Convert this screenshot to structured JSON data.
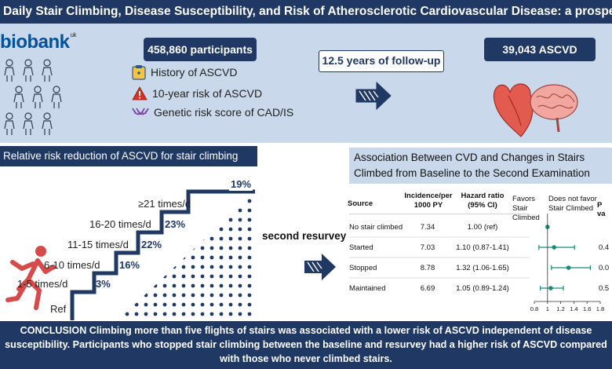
{
  "title": "Daily Stair Climbing, Disease Susceptibility, and Risk of Atherosclerotic Cardiovascular Disease: a prospective cohort study",
  "top": {
    "logo": "biobank",
    "logo_sup": "uk",
    "participants": "458,860 participants",
    "features": [
      "History of ASCVD",
      "10-year risk of ASCVD",
      "Genetic risk score of CAD/IS"
    ],
    "followup": "12.5 years of follow-up",
    "outcome": "39,043 ASCVD"
  },
  "left_panel": {
    "title": "Relative risk reduction of ASCVD for stair climbing",
    "steps": [
      {
        "label": "Ref",
        "pct": ""
      },
      {
        "label": "1-5 times/d",
        "pct": "3%"
      },
      {
        "label": "6-10 times/d",
        "pct": "16%"
      },
      {
        "label": "11-15 times/d",
        "pct": "22%"
      },
      {
        "label": "16-20 times/d",
        "pct": "23%"
      },
      {
        "label": "≥21 times/d",
        "pct": "19%"
      }
    ]
  },
  "middle": {
    "label": "second resurvey"
  },
  "right_panel": {
    "title": "Association Between CVD and Changes in Stairs Climbed from Baseline to the Second Examination",
    "table": {
      "headers": [
        "Source",
        "Incidence/per 1000 PY",
        "Hazard ratio (95% CI)",
        "P va"
      ],
      "favors": "Favors Stair Climbed",
      "not_favor": "Does not favor Stair Climbed",
      "rows": [
        {
          "source": "No stair climbed",
          "incidence": "7.34",
          "hr": "1.00 (ref)",
          "p": "",
          "est": 1.0,
          "lo": 1.0,
          "hi": 1.0
        },
        {
          "source": "Started",
          "incidence": "7.03",
          "hr": "1.10 (0.87-1.41)",
          "p": "0.4",
          "est": 1.1,
          "lo": 0.87,
          "hi": 1.41
        },
        {
          "source": "Stopped",
          "incidence": "8.78",
          "hr": "1.32 (1.06-1.65)",
          "p": "0.0",
          "est": 1.32,
          "lo": 1.06,
          "hi": 1.65
        },
        {
          "source": "Maintained",
          "incidence": "6.69",
          "hr": "1.05 (0.89-1.24)",
          "p": "0.5",
          "est": 1.05,
          "lo": 0.89,
          "hi": 1.24
        }
      ],
      "axis_ticks": [
        "0.8",
        "1",
        "1.2",
        "1.4",
        "1.6",
        "1.8"
      ],
      "axis_range": [
        0.8,
        1.8
      ]
    }
  },
  "conclusion": "CONCLUSION Climbing more than five flights of stairs was associated with a lower risk of ASCVD  independent of disease susceptibility. Participants who stopped stair climbing between the baseline and resurvey had a higher risk of ASCVD compared with those who never climbed stairs.",
  "colors": {
    "navy": "#1f3864",
    "light_blue": "#c9d8ea",
    "heart_red": "#c0392b",
    "forest_teal": "#1a8a7a"
  }
}
